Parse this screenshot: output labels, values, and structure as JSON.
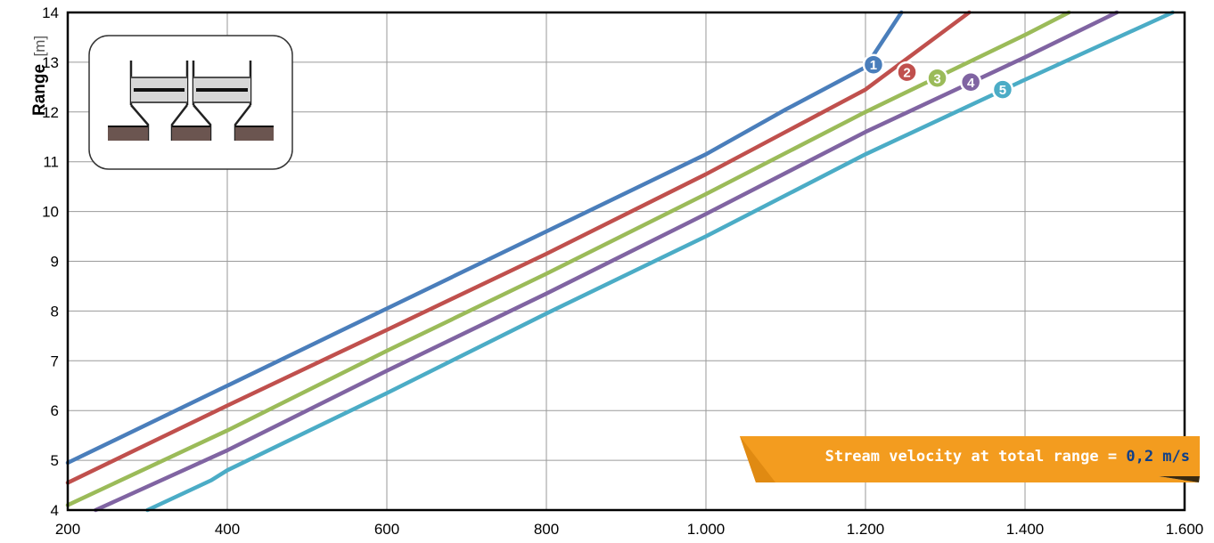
{
  "chart_data": {
    "type": "line",
    "title": "",
    "ylabel": "Range",
    "ylabel_unit": "[m]",
    "xlabel": "",
    "xlim": [
      200,
      1600
    ],
    "ylim": [
      4,
      14
    ],
    "x_ticks": [
      200,
      400,
      600,
      800,
      1000,
      1200,
      1400,
      1600
    ],
    "x_tick_labels": [
      "200",
      "400",
      "600",
      "800",
      "1.000",
      "1.200",
      "1.400",
      "1.600"
    ],
    "y_ticks": [
      4,
      5,
      6,
      7,
      8,
      9,
      10,
      11,
      12,
      13,
      14
    ],
    "y_tick_labels": [
      "4",
      "5",
      "6",
      "7",
      "8",
      "9",
      "10",
      "11",
      "12",
      "13",
      "14"
    ],
    "grid": true,
    "series": [
      {
        "label": "1",
        "color": "#4a7ebb",
        "x": [
          200,
          400,
          600,
          800,
          1000,
          1100,
          1200,
          1245
        ],
        "y": [
          4.95,
          6.5,
          8.05,
          9.6,
          11.15,
          12.05,
          12.9,
          14.0
        ]
      },
      {
        "label": "2",
        "color": "#c0504d",
        "x": [
          200,
          400,
          600,
          800,
          1000,
          1200,
          1330
        ],
        "y": [
          4.55,
          6.1,
          7.62,
          9.15,
          10.75,
          12.45,
          14.0
        ]
      },
      {
        "label": "3",
        "color": "#9bbb59",
        "x": [
          200,
          400,
          600,
          800,
          1000,
          1200,
          1400,
          1455
        ],
        "y": [
          4.1,
          5.6,
          7.2,
          8.75,
          10.35,
          12.0,
          13.55,
          14.0
        ]
      },
      {
        "label": "4",
        "color": "#8064a2",
        "x": [
          235,
          400,
          600,
          800,
          1000,
          1200,
          1400,
          1515
        ],
        "y": [
          4.0,
          5.2,
          6.8,
          8.35,
          9.95,
          11.6,
          13.1,
          14.0
        ]
      },
      {
        "label": "5",
        "color": "#4bacc6",
        "x": [
          300,
          380,
          400,
          600,
          800,
          1000,
          1200,
          1400,
          1585
        ],
        "y": [
          4.0,
          4.6,
          4.8,
          6.35,
          7.95,
          9.5,
          11.15,
          12.65,
          14.0
        ]
      }
    ],
    "markers": [
      {
        "label": "1",
        "color": "#4a7ebb",
        "x": 1210,
        "y": 12.95
      },
      {
        "label": "2",
        "color": "#c0504d",
        "x": 1252,
        "y": 12.8
      },
      {
        "label": "3",
        "color": "#9bbb59",
        "x": 1290,
        "y": 12.68
      },
      {
        "label": "4",
        "color": "#8064a2",
        "x": 1332,
        "y": 12.6
      },
      {
        "label": "5",
        "color": "#4bacc6",
        "x": 1372,
        "y": 12.45
      }
    ],
    "annotation": {
      "text": "Stream velocity at total range = ",
      "value": "0,2 m/s",
      "color": "#f39c1f"
    }
  }
}
